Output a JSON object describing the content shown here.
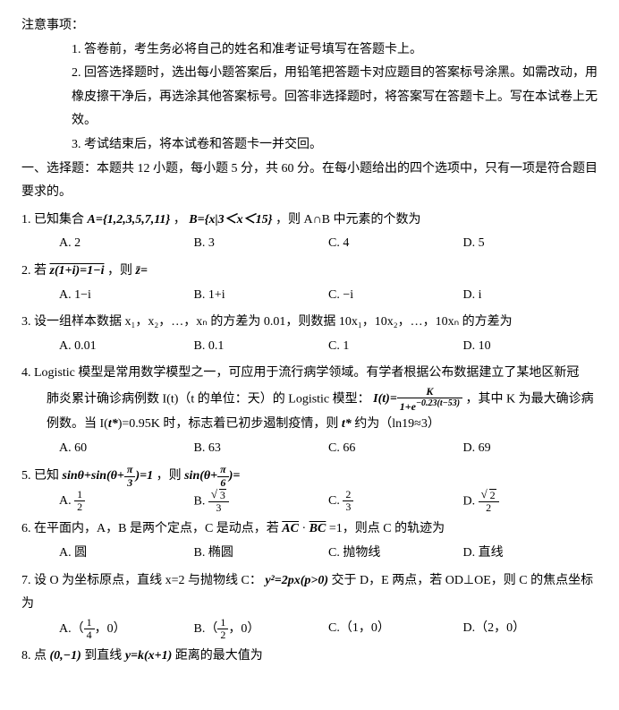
{
  "header": "注意事项：",
  "notes": {
    "n1": "1. 答卷前，考生务必将自己的姓名和准考证号填写在答题卡上。",
    "n2": "2. 回答选择题时，选出每小题答案后，用铅笔把答题卡对应题目的答案标号涂黑。如需改动，用橡皮擦干净后，再选涂其他答案标号。回答非选择题时，将答案写在答题卡上。写在本试卷上无效。",
    "n3": "3. 考试结束后，将本试卷和答题卡一并交回。"
  },
  "section1": {
    "title": "一、选择题：本题共 12 小题，每小题 5 分，共 60 分。在每小题给出的四个选项中，只有一项是符合题目要求的。",
    "q1": {
      "pre": "1. 已知集合 ",
      "setA": "A={1,2,3,5,7,11}",
      "mid": "， ",
      "setB": "B={x|3＜x＜15}",
      "post": "，则 A∩B 中元素的个数为",
      "a": "A. 2",
      "b": "B. 3",
      "c": "C. 4",
      "d": "D. 5"
    },
    "q2": {
      "pre": "2. 若 ",
      "eq": "z(1+i)=1−i",
      "mid": "，则 ",
      "zbar": "z̄=",
      "a": "A. 1−i",
      "b": "B. 1+i",
      "c": "C. −i",
      "d": "D. i"
    },
    "q3": {
      "t": "3. 设一组样本数据 x₁，x₂，…，xₙ 的方差为 0.01，则数据 10x₁，10x₂，…，10xₙ 的方差为",
      "a": "A. 0.01",
      "b": "B. 0.1",
      "c": "C. 1",
      "d": "D. 10"
    },
    "q4": {
      "l1": "4. Logistic 模型是常用数学模型之一，可应用于流行病学领域。有学者根据公布数据建立了某地区新冠",
      "l2a": "肺炎累计确诊病例数 I(t)（t 的单位：天）的 Logistic 模型：",
      "frac_n": "K",
      "frac_d": "1+e",
      "expo": "−0.23(t−53)",
      "l2b": "，其中 K 为最大确诊病",
      "l3": "例数。当 I(",
      "tstar": "t*",
      "l3b": ")=0.95K 时，标志着已初步遏制疫情，则 ",
      "tstar2": "t*",
      "l3c": " 约为（ln19≈3）",
      "a": "A. 60",
      "b": "B. 63",
      "c": "C. 66",
      "d": "D. 69"
    },
    "q5": {
      "pre": "5. 已知 ",
      "eq1a": "sinθ+sin(θ+",
      "pi": "π",
      "three": "3",
      "eq1b": ")=1",
      "mid": "，则 ",
      "eq2a": "sin(θ+",
      "six": "6",
      "eq2b": ")=",
      "a": "A. ",
      "b": "B. ",
      "c": "C. ",
      "d": "D. ",
      "a_n": "1",
      "a_d": "2",
      "b_n": "3",
      "b_d": "3",
      "c_n": "2",
      "c_d": "3",
      "d_n": "2",
      "d_d": "2"
    },
    "q6": {
      "pre": "6. 在平面内，A，B 是两个定点，C 是动点，若 ",
      "ac": "AC",
      "bc": "BC",
      "post": "=1，则点 C 的轨迹为",
      "a": "A. 圆",
      "b": "B. 椭圆",
      "c": "C. 抛物线",
      "d": "D. 直线"
    },
    "q7": {
      "pre": "7. 设 O 为坐标原点，直线 x=2 与抛物线 C：",
      "eq": "y²=2px(p>0)",
      "post": "交于 D，E 两点，若 OD⊥OE，则 C 的焦点坐标为",
      "a_pre": "A.（",
      "a_n": "1",
      "a_d": "4",
      "a_post": "，0）",
      "b_pre": "B.（",
      "b_n": "1",
      "b_d": "2",
      "b_post": "，0）",
      "c": "C.（1，0）",
      "d": "D.（2，0）"
    },
    "q8": {
      "pre": "8. 点 ",
      "pt": "(0,−1)",
      "mid": "到直线 ",
      "eq": "y=k(x+1)",
      "post": "距离的最大值为"
    }
  }
}
